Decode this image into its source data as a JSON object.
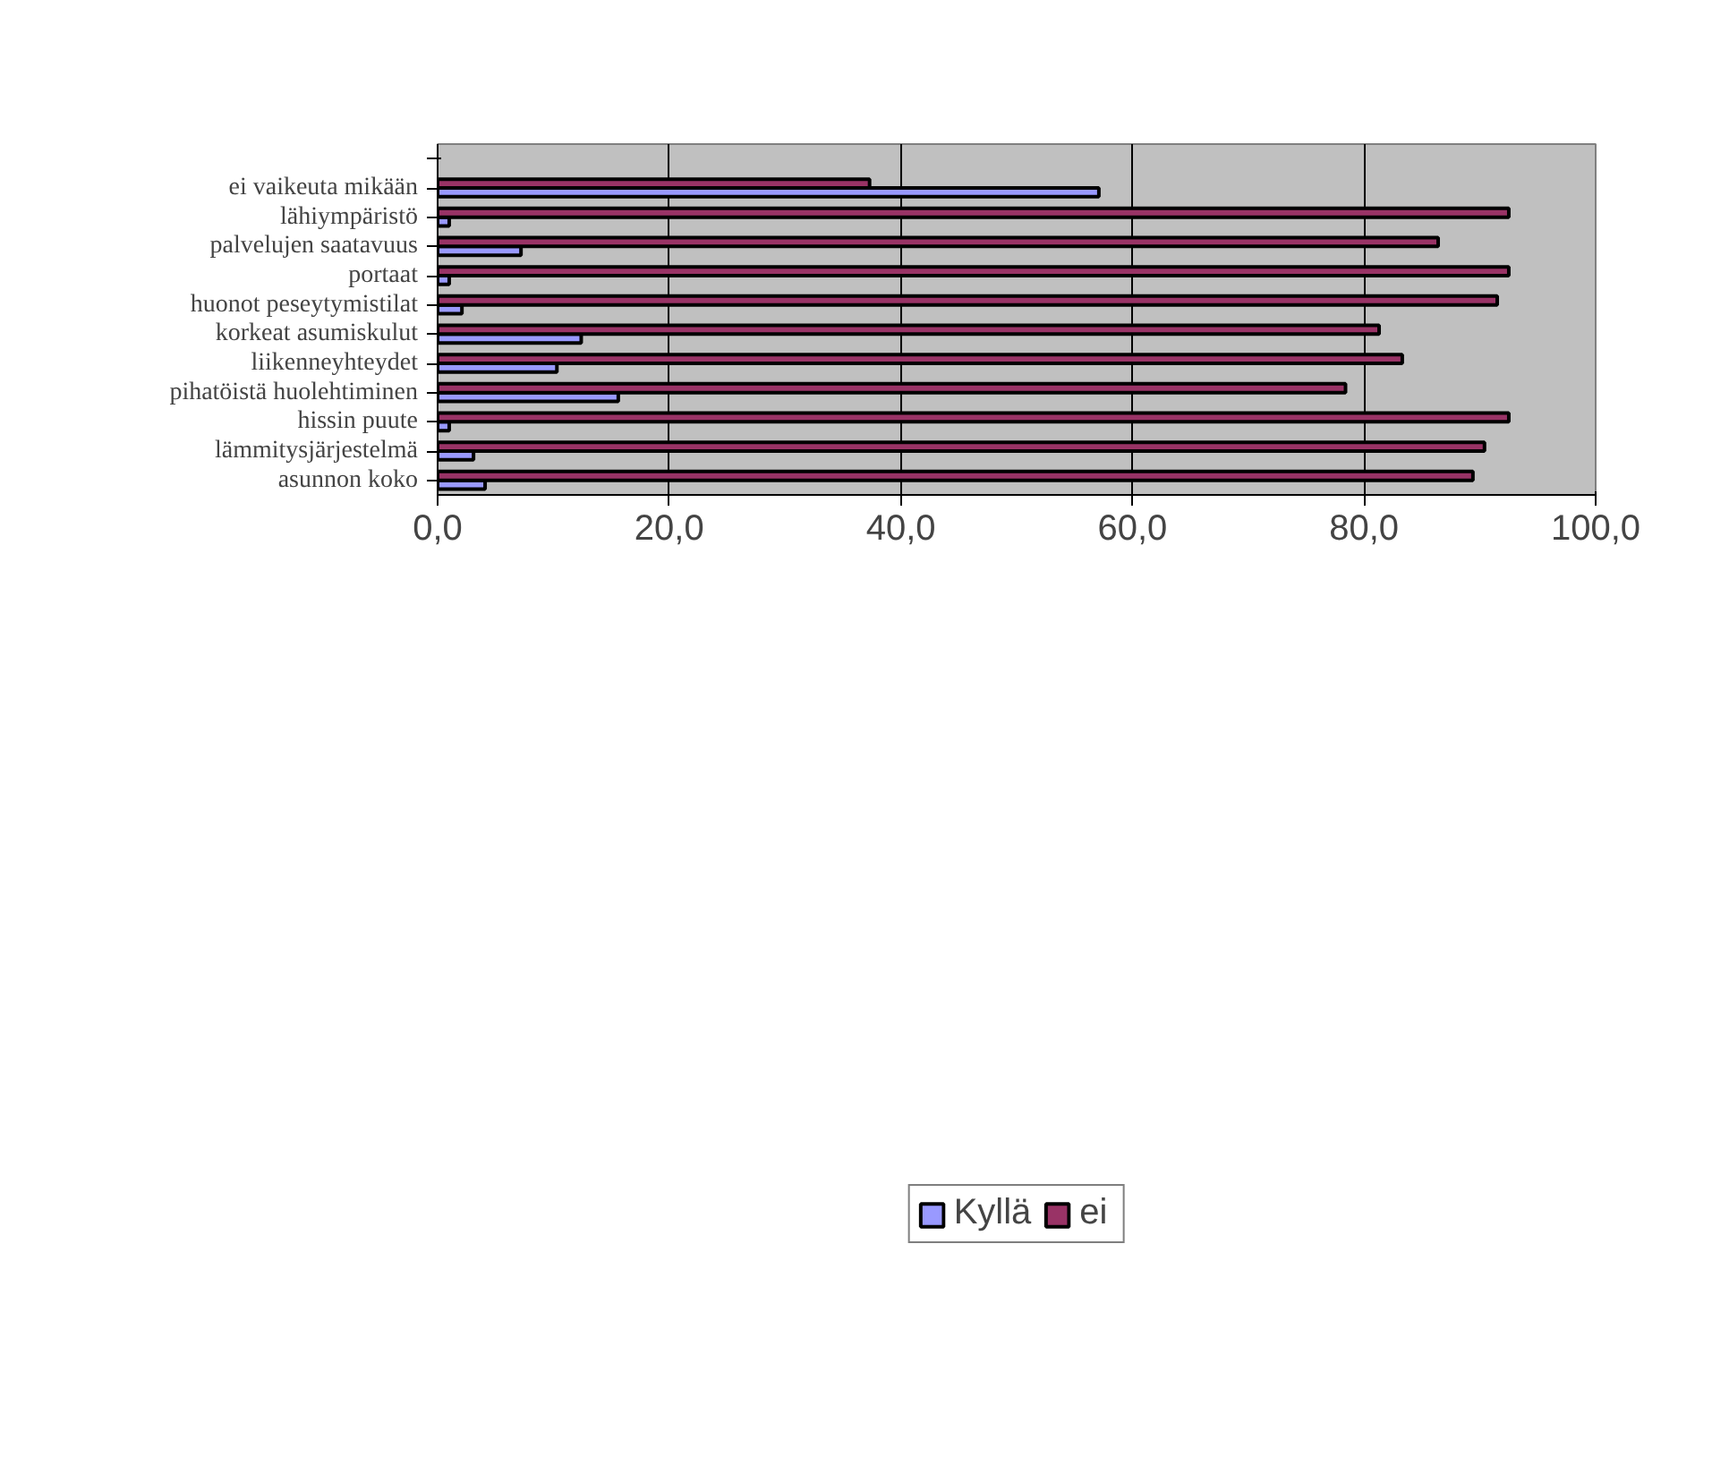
{
  "chart_data": {
    "type": "bar",
    "orientation": "horizontal",
    "categories": [
      null,
      "ei vaikeuta mikään",
      "lähiympäristö",
      "palvelujen saatavuus",
      "portaat",
      "huonot peseytymistilat",
      "korkeat asumiskulut",
      "liikenneyhteydet",
      "pihatöistä huolehtiminen",
      "hissin puute",
      "lämmitysjärjestelmä",
      "asunnon koko"
    ],
    "series": [
      {
        "name": "Kyllä",
        "color": "#9999ff",
        "values": [
          null,
          57.1,
          1.0,
          7.2,
          1.0,
          2.1,
          12.4,
          10.3,
          15.6,
          1.0,
          3.1,
          4.1
        ]
      },
      {
        "name": "ei",
        "color": "#993366",
        "values": [
          null,
          37.3,
          92.5,
          86.4,
          92.5,
          91.5,
          81.3,
          83.3,
          78.4,
          92.5,
          90.4,
          89.4
        ]
      }
    ],
    "xlim": [
      0,
      100
    ],
    "xticks": [
      {
        "value": 0,
        "label": "0,0"
      },
      {
        "value": 20,
        "label": "20,0"
      },
      {
        "value": 40,
        "label": "40,0"
      },
      {
        "value": 60,
        "label": "60,0"
      },
      {
        "value": 80,
        "label": "80,0"
      },
      {
        "value": 100,
        "label": "100,0"
      }
    ],
    "grid": "x",
    "legend": "bottom"
  }
}
